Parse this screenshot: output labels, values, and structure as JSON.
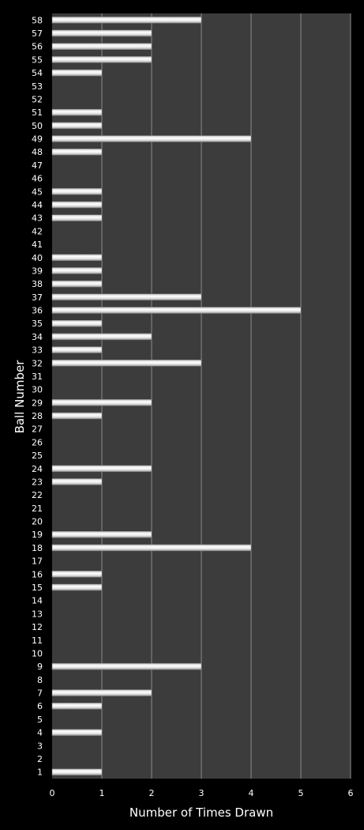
{
  "colors": {
    "background": "#000000",
    "plot_area": "#3c3c3c",
    "gridline": "#8a8a8a",
    "bar": "#ffffff",
    "text": "#ffffff"
  },
  "chart_data": {
    "type": "bar",
    "orientation": "horizontal",
    "title": "",
    "xlabel": "Number of Times Drawn",
    "ylabel": "Ball Number",
    "xlim": [
      0,
      6
    ],
    "xticks": [
      0,
      1,
      2,
      3,
      4,
      5,
      6
    ],
    "grid": "vertical",
    "legend": "none",
    "categories": [
      "1",
      "2",
      "3",
      "4",
      "5",
      "6",
      "7",
      "8",
      "9",
      "10",
      "11",
      "12",
      "13",
      "14",
      "15",
      "16",
      "17",
      "18",
      "19",
      "20",
      "21",
      "22",
      "23",
      "24",
      "25",
      "26",
      "27",
      "28",
      "29",
      "30",
      "31",
      "32",
      "33",
      "34",
      "35",
      "36",
      "37",
      "38",
      "39",
      "40",
      "41",
      "42",
      "43",
      "44",
      "45",
      "46",
      "47",
      "48",
      "49",
      "50",
      "51",
      "52",
      "53",
      "54",
      "55",
      "56",
      "57",
      "58"
    ],
    "values": [
      1,
      0,
      0,
      1,
      0,
      1,
      2,
      0,
      3,
      0,
      0,
      0,
      0,
      0,
      1,
      1,
      0,
      4,
      2,
      0,
      0,
      0,
      1,
      2,
      0,
      0,
      0,
      1,
      2,
      0,
      0,
      3,
      1,
      2,
      1,
      5,
      3,
      1,
      1,
      1,
      0,
      0,
      1,
      1,
      1,
      0,
      0,
      1,
      4,
      1,
      1,
      0,
      0,
      1,
      2,
      2,
      2,
      3
    ]
  }
}
